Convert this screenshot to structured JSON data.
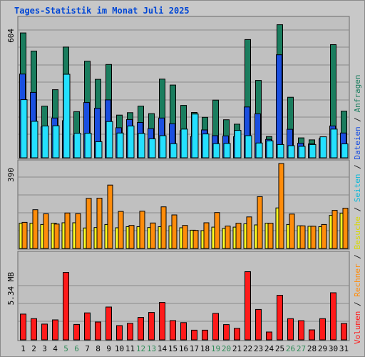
{
  "title": "Tages-Statistik im Monat Juli 2025",
  "colors": {
    "anfragen": "#1a7d5e",
    "dateien": "#1a4fe0",
    "seiten": "#24e0ff",
    "besuche": "#ffff22",
    "rechner": "#ff8c0a",
    "volumen": "#ff1a1a",
    "weekend_label": "#2e8b57",
    "separator": "#222222"
  },
  "right_label": {
    "anfragen": "Anfragen",
    "dateien": "Dateien",
    "seiten": "Seiten",
    "besuche": "Besuche",
    "rechner": "Rechner",
    "volumen": "Volumen",
    "separator": "/"
  },
  "chart_data": [
    {
      "type": "bar",
      "panel": "top",
      "ymax_label": "604",
      "ylim": [
        0,
        604
      ],
      "categories": [
        "1",
        "2",
        "3",
        "4",
        "5",
        "6",
        "7",
        "8",
        "9",
        "10",
        "11",
        "12",
        "13",
        "14",
        "15",
        "16",
        "17",
        "18",
        "19",
        "20",
        "21",
        "22",
        "23",
        "24",
        "25",
        "26",
        "27",
        "28",
        "29",
        "30",
        "31"
      ],
      "weekend": [
        5,
        6,
        12,
        13,
        19,
        20,
        26,
        27
      ],
      "series": [
        {
          "name": "Anfragen",
          "values": [
            565,
            483,
            234,
            308,
            501,
            209,
            437,
            355,
            422,
            193,
            204,
            234,
            200,
            356,
            329,
            237,
            205,
            183,
            261,
            172,
            152,
            535,
            350,
            96,
            602,
            274,
            90,
            81,
            89,
            512,
            211
          ]
        },
        {
          "name": "Dateien",
          "values": [
            379,
            296,
            140,
            180,
            168,
            100,
            250,
            224,
            262,
            136,
            173,
            160,
            132,
            180,
            154,
            123,
            97,
            126,
            100,
            99,
            96,
            230,
            199,
            83,
            466,
            129,
            66,
            63,
            86,
            144,
            112
          ]
        },
        {
          "name": "Seiten",
          "values": [
            263,
            165,
            144,
            145,
            378,
            111,
            111,
            73,
            164,
            112,
            144,
            110,
            86,
            100,
            64,
            130,
            198,
            108,
            64,
            65,
            124,
            100,
            67,
            77,
            60,
            55,
            52,
            60,
            95,
            130,
            63
          ]
        }
      ]
    },
    {
      "type": "bar",
      "panel": "middle",
      "ymax_label": "390",
      "ylim": [
        0,
        390
      ],
      "categories": [
        "1",
        "2",
        "3",
        "4",
        "5",
        "6",
        "7",
        "8",
        "9",
        "10",
        "11",
        "12",
        "13",
        "14",
        "15",
        "16",
        "17",
        "18",
        "19",
        "20",
        "21",
        "22",
        "23",
        "24",
        "25",
        "26",
        "27",
        "28",
        "29",
        "30",
        "31"
      ],
      "series": [
        {
          "name": "Besuche",
          "values": [
            116,
            116,
            110,
            116,
            118,
            118,
            94,
            96,
            110,
            95,
            100,
            100,
            96,
            100,
            104,
            95,
            84,
            82,
            98,
            92,
            98,
            113,
            108,
            116,
            186,
            110,
            104,
            102,
            100,
            152,
            162
          ]
        },
        {
          "name": "Rechner",
          "values": [
            120,
            178,
            159,
            112,
            163,
            160,
            230,
            231,
            291,
            170,
            106,
            171,
            117,
            191,
            154,
            106,
            83,
            118,
            165,
            103,
            116,
            145,
            238,
            116,
            390,
            158,
            104,
            102,
            110,
            175,
            185
          ]
        }
      ]
    },
    {
      "type": "bar",
      "panel": "bottom",
      "ymax_label": "5.34 MB",
      "ylim": [
        0,
        5.34
      ],
      "categories": [
        "1",
        "2",
        "3",
        "4",
        "5",
        "6",
        "7",
        "8",
        "9",
        "10",
        "11",
        "12",
        "13",
        "14",
        "15",
        "16",
        "17",
        "18",
        "19",
        "20",
        "21",
        "22",
        "23",
        "24",
        "25",
        "26",
        "27",
        "28",
        "29",
        "30",
        "31"
      ],
      "series": [
        {
          "name": "Volumen",
          "values": [
            1.91,
            1.57,
            1.17,
            1.48,
            4.99,
            1.14,
            2.0,
            1.32,
            2.43,
            1.06,
            1.22,
            1.66,
            2.03,
            2.77,
            1.43,
            1.28,
            0.72,
            0.72,
            1.96,
            1.13,
            0.85,
            5.05,
            2.25,
            0.58,
            3.3,
            1.57,
            1.42,
            0.74,
            1.57,
            3.49,
            1.21
          ]
        }
      ]
    }
  ]
}
